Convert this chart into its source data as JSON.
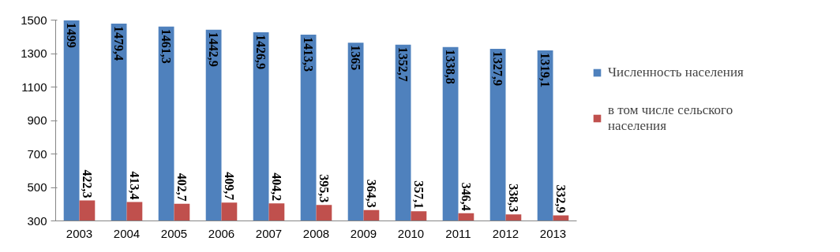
{
  "chart_data": {
    "type": "bar",
    "categories": [
      "2003",
      "2004",
      "2005",
      "2006",
      "2007",
      "2008",
      "2009",
      "2010",
      "2011",
      "2012",
      "2013"
    ],
    "series": [
      {
        "name": "Численность населения",
        "color": "#4f81bd",
        "values": [
          1499,
          1479.4,
          1461.3,
          1442.9,
          1426.9,
          1413.3,
          1365,
          1352.7,
          1338.8,
          1327.9,
          1319.1
        ],
        "value_labels": [
          "1499",
          "1479,4",
          "1461,3",
          "1442,9",
          "1426,9",
          "1413,3",
          "1365",
          "1352,7",
          "1338,8",
          "1327,9",
          "1319,1"
        ]
      },
      {
        "name": "в том числе сельского населения",
        "color": "#c0504d",
        "values": [
          422.3,
          413.4,
          402.7,
          409.7,
          404.2,
          395.3,
          364.3,
          357.1,
          346.4,
          338.3,
          332.9
        ],
        "value_labels": [
          "422,3",
          "413,4",
          "402,7",
          "409,7",
          "404,2",
          "395,3",
          "364,3",
          "357,1",
          "346,4",
          "338,3",
          "332,9"
        ]
      }
    ],
    "ylim": [
      300,
      1500
    ],
    "yticks": [
      300,
      500,
      700,
      900,
      1100,
      1300,
      1500
    ],
    "grid": false,
    "legend": "right"
  }
}
